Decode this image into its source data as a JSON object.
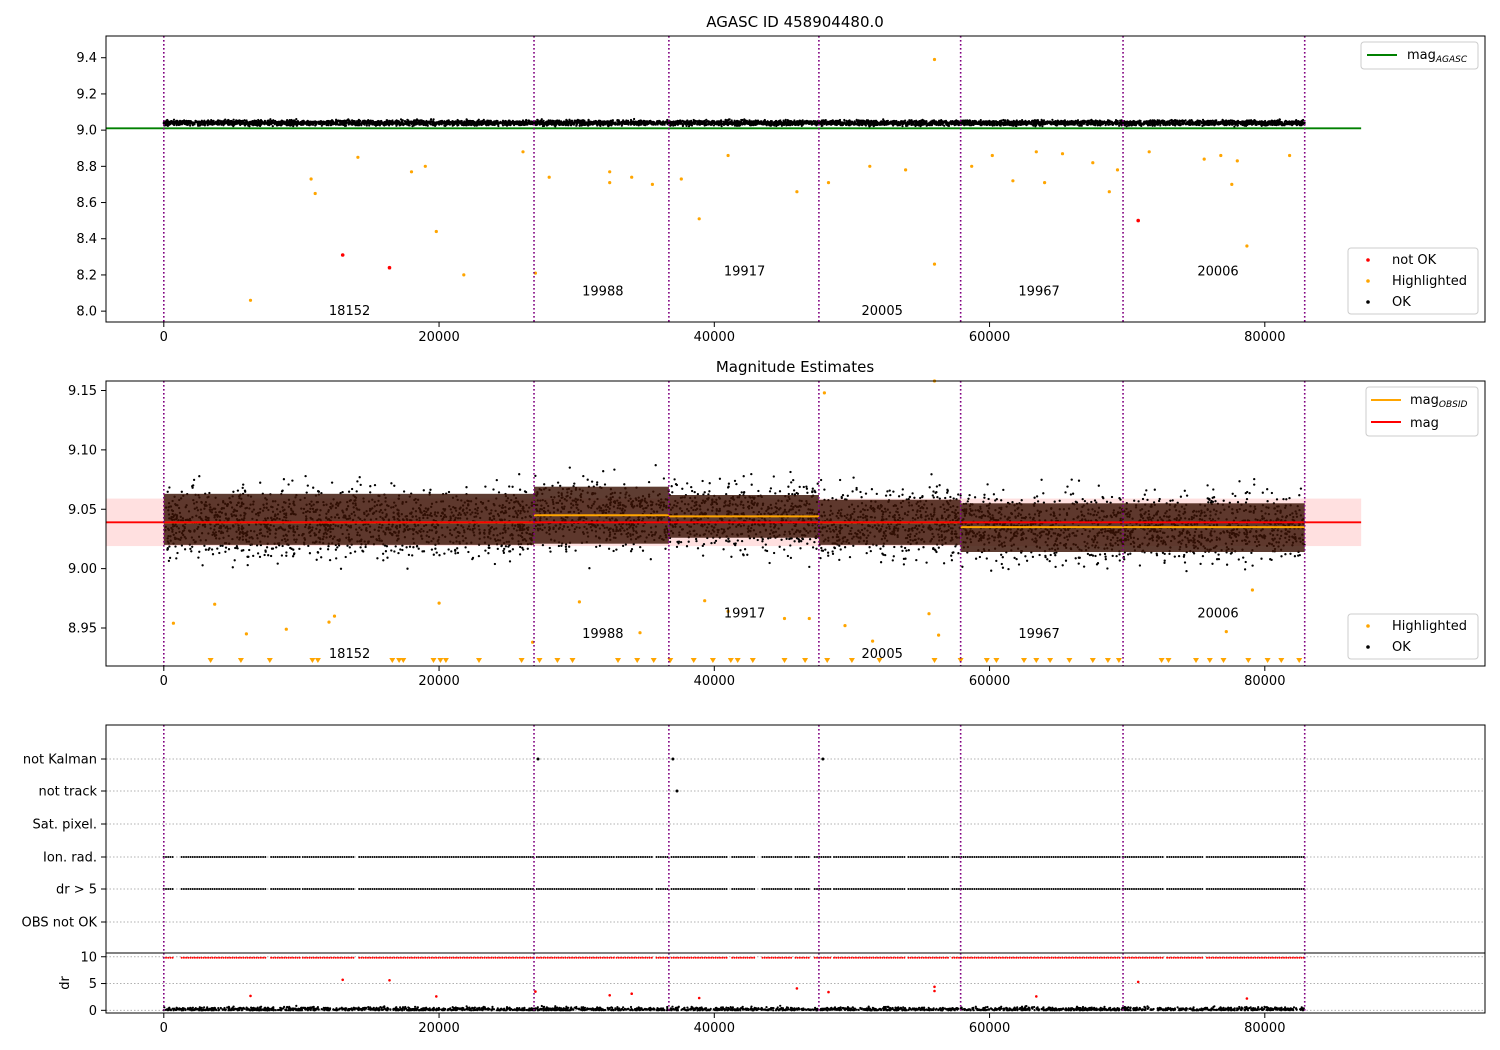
{
  "chart_data": [
    {
      "type": "scatter",
      "title": "AGASC ID 458904480.0",
      "xlim": [
        -4200,
        96000
      ],
      "ylim": [
        7.94,
        9.52
      ],
      "x_ticks": [
        0,
        20000,
        40000,
        60000,
        80000
      ],
      "y_ticks": [
        8.0,
        8.2,
        8.4,
        8.6,
        8.8,
        9.0,
        9.2,
        9.4
      ],
      "grid": false,
      "reference_line": {
        "name": "mag_AGASC",
        "y": 9.01,
        "x": [
          -4200,
          87000
        ],
        "color": "#008000"
      },
      "observation_boundaries": [
        0,
        26900,
        36700,
        47600,
        57900,
        69700,
        82900
      ],
      "observation_labels": [
        {
          "text": "18152",
          "x": 13500,
          "y": 8.005
        },
        {
          "text": "19988",
          "x": 31900,
          "y": 8.115
        },
        {
          "text": "19917",
          "x": 42200,
          "y": 8.225
        },
        {
          "text": "20005",
          "x": 52200,
          "y": 8.005
        },
        {
          "text": "19967",
          "x": 63600,
          "y": 8.115
        },
        {
          "text": "20006",
          "x": 76600,
          "y": 8.225
        }
      ],
      "band": {
        "center": 9.04,
        "half_width": 0.04,
        "x_range": [
          0,
          82900
        ]
      },
      "series": [
        {
          "name": "not OK",
          "color": "#ff0000",
          "points": [
            [
              13000,
              8.31
            ],
            [
              16400,
              8.24
            ],
            [
              70800,
              8.5
            ]
          ]
        },
        {
          "name": "Highlighted",
          "color": "#ffa500",
          "points": [
            [
              6300,
              8.06
            ],
            [
              10700,
              8.73
            ],
            [
              11000,
              8.65
            ],
            [
              14100,
              8.85
            ],
            [
              18000,
              8.77
            ],
            [
              19000,
              8.8
            ],
            [
              19800,
              8.44
            ],
            [
              21800,
              8.2
            ],
            [
              26100,
              8.88
            ],
            [
              27000,
              8.21
            ],
            [
              28000,
              8.74
            ],
            [
              32400,
              8.71
            ],
            [
              32400,
              8.77
            ],
            [
              34000,
              8.74
            ],
            [
              35500,
              8.7
            ],
            [
              37600,
              8.73
            ],
            [
              38900,
              8.51
            ],
            [
              41000,
              8.86
            ],
            [
              46000,
              8.66
            ],
            [
              48300,
              8.71
            ],
            [
              51300,
              8.8
            ],
            [
              53900,
              8.78
            ],
            [
              56000,
              9.39
            ],
            [
              56000,
              8.26
            ],
            [
              58700,
              8.8
            ],
            [
              60200,
              8.86
            ],
            [
              61700,
              8.72
            ],
            [
              63400,
              8.88
            ],
            [
              64000,
              8.71
            ],
            [
              65300,
              8.87
            ],
            [
              67500,
              8.82
            ],
            [
              68700,
              8.66
            ],
            [
              69300,
              8.78
            ],
            [
              71600,
              8.88
            ],
            [
              75600,
              8.84
            ],
            [
              76800,
              8.86
            ],
            [
              77600,
              8.7
            ],
            [
              78000,
              8.83
            ],
            [
              78700,
              8.36
            ],
            [
              81800,
              8.86
            ]
          ]
        },
        {
          "name": "OK",
          "color": "#000000",
          "density_note": "dense band between 8.99 and 9.09 across all observations"
        }
      ],
      "legend": {
        "top_right": [
          "mag_AGASC"
        ],
        "bottom_right": [
          "not OK",
          "Highlighted",
          "OK"
        ]
      }
    },
    {
      "type": "scatter",
      "title": "Magnitude Estimates",
      "xlim": [
        -4200,
        96000
      ],
      "ylim": [
        8.918,
        9.158
      ],
      "x_ticks": [
        0,
        20000,
        40000,
        60000,
        80000
      ],
      "y_ticks": [
        8.95,
        9.0,
        9.05,
        9.1,
        9.15
      ],
      "grid": false,
      "observation_boundaries": [
        0,
        26900,
        36700,
        47600,
        57900,
        69700,
        82900
      ],
      "observation_labels": [
        {
          "text": "18152",
          "x": 13500,
          "y": 8.929
        },
        {
          "text": "19988",
          "x": 31900,
          "y": 8.946
        },
        {
          "text": "19917",
          "x": 42200,
          "y": 8.963
        },
        {
          "text": "20005",
          "x": 52200,
          "y": 8.929
        },
        {
          "text": "19967",
          "x": 63600,
          "y": 8.946
        },
        {
          "text": "20006",
          "x": 76600,
          "y": 8.963
        }
      ],
      "mag_line": {
        "name": "mag",
        "y": 9.039,
        "x": [
          -4200,
          87000
        ],
        "color": "#ff0000",
        "band": [
          9.019,
          9.059
        ]
      },
      "mag_obsid": {
        "name": "mag_OBSID",
        "color": "#ffa500",
        "segments": [
          {
            "x": [
              0,
              26900
            ],
            "y": 9.039,
            "band": [
              9.02,
              9.063
            ]
          },
          {
            "x": [
              26900,
              36700
            ],
            "y": 9.045,
            "band": [
              9.021,
              9.069
            ]
          },
          {
            "x": [
              36700,
              47600
            ],
            "y": 9.044,
            "band": [
              9.026,
              9.062
            ]
          },
          {
            "x": [
              47600,
              57900
            ],
            "y": 9.039,
            "band": [
              9.02,
              9.058
            ]
          },
          {
            "x": [
              57900,
              69700
            ],
            "y": 9.035,
            "band": [
              9.014,
              9.055
            ]
          },
          {
            "x": [
              69700,
              82900
            ],
            "y": 9.035,
            "band": [
              9.014,
              9.055
            ]
          }
        ]
      },
      "clipped_low_markers_x": [
        3400,
        5600,
        7700,
        10800,
        11200,
        16600,
        17100,
        17400,
        19600,
        20100,
        20500,
        22900,
        26000,
        27300,
        28600,
        29700,
        33000,
        34400,
        35600,
        36800,
        38500,
        39900,
        41200,
        41700,
        42800,
        45100,
        46600,
        48200,
        50000,
        52000,
        56000,
        57900,
        59800,
        60500,
        62500,
        63400,
        64400,
        65800,
        67500,
        68600,
        69400,
        72500,
        73000,
        75000,
        76000,
        77000,
        78800,
        80200,
        81200,
        82500
      ],
      "highlighted_outliers": [
        [
          700,
          8.954
        ],
        [
          3700,
          8.97
        ],
        [
          6000,
          8.945
        ],
        [
          8900,
          8.949
        ],
        [
          12000,
          8.955
        ],
        [
          12400,
          8.96
        ],
        [
          20000,
          8.971
        ],
        [
          26800,
          8.938
        ],
        [
          30200,
          8.972
        ],
        [
          34600,
          8.946
        ],
        [
          39300,
          8.973
        ],
        [
          41000,
          8.964
        ],
        [
          45100,
          8.958
        ],
        [
          46900,
          8.958
        ],
        [
          48000,
          9.148
        ],
        [
          49500,
          8.952
        ],
        [
          51500,
          8.939
        ],
        [
          55600,
          8.962
        ],
        [
          56300,
          8.944
        ],
        [
          56000,
          9.158
        ],
        [
          77200,
          8.947
        ],
        [
          79100,
          8.982
        ]
      ],
      "series": [
        {
          "name": "Highlighted",
          "color": "#ffa500",
          "density_note": "points above ~9.09 and below ~8.99"
        },
        {
          "name": "OK",
          "color": "#000000",
          "density_note": "dense band between ~8.98 and ~9.10"
        }
      ],
      "legend": {
        "top_right": [
          "mag_OBSID",
          "mag"
        ],
        "bottom_right": [
          "Highlighted",
          "OK"
        ]
      }
    },
    {
      "type": "scatter",
      "title": "",
      "xlim": [
        -4200,
        96000
      ],
      "x_ticks": [
        0,
        20000,
        40000,
        60000,
        80000
      ],
      "categories": [
        "not Kalman",
        "not track",
        "Sat. pixel.",
        "Ion. rad.",
        "dr > 5",
        "OBS not OK"
      ],
      "grid": "dotted horizontal per category",
      "observation_boundaries": [
        0,
        26900,
        36700,
        47600,
        57900,
        69700,
        82900
      ],
      "flag_rows": [
        {
          "category": "not Kalman",
          "points_x": [
            26900,
            36700,
            47600
          ]
        },
        {
          "category": "not track",
          "points_x": [
            37000
          ]
        },
        {
          "category": "Sat. pixel.",
          "points_x": []
        },
        {
          "category": "Ion. rad.",
          "ranges": [
            [
              0,
              700
            ],
            [
              1300,
              7500
            ],
            [
              7800,
              9900
            ],
            [
              10100,
              13900
            ],
            [
              14200,
              26900
            ],
            [
              27100,
              32800
            ],
            [
              32900,
              35600
            ],
            [
              35800,
              36700
            ],
            [
              36900,
              41000
            ],
            [
              41300,
              43000
            ],
            [
              43500,
              45600
            ],
            [
              45900,
              47000
            ],
            [
              47300,
              48500
            ],
            [
              48700,
              53900
            ],
            [
              54100,
              57000
            ],
            [
              57300,
              69500
            ],
            [
              69700,
              72600
            ],
            [
              72900,
              75500
            ],
            [
              75800,
              82900
            ]
          ]
        },
        {
          "category": "dr > 5",
          "ranges": [
            [
              0,
              700
            ],
            [
              1300,
              7500
            ],
            [
              7800,
              9900
            ],
            [
              10100,
              13900
            ],
            [
              14200,
              26900
            ],
            [
              27100,
              32800
            ],
            [
              32900,
              35600
            ],
            [
              35800,
              36700
            ],
            [
              36900,
              41000
            ],
            [
              41300,
              43000
            ],
            [
              43500,
              45600
            ],
            [
              45900,
              47000
            ],
            [
              47300,
              48500
            ],
            [
              48700,
              53900
            ],
            [
              54100,
              57000
            ],
            [
              57300,
              69500
            ],
            [
              69700,
              72600
            ],
            [
              72900,
              75500
            ],
            [
              75800,
              82900
            ]
          ]
        },
        {
          "category": "OBS not OK",
          "points_x": []
        }
      ]
    },
    {
      "type": "scatter",
      "title": "",
      "ylabel": "dr",
      "xlim": [
        -4200,
        96000
      ],
      "ylim": [
        -0.5,
        10.7
      ],
      "x_ticks": [
        0,
        20000,
        40000,
        60000,
        80000
      ],
      "y_ticks": [
        0,
        5,
        10
      ],
      "grid": "dotted horizontal",
      "observation_boundaries": [
        0,
        26900,
        36700,
        47600,
        57900,
        69700,
        82900
      ],
      "clipped_high_y": 9.8,
      "dr_outliers": [
        [
          6300,
          2.7
        ],
        [
          13000,
          5.7
        ],
        [
          16400,
          5.6
        ],
        [
          19800,
          2.6
        ],
        [
          27000,
          3.5
        ],
        [
          32400,
          2.8
        ],
        [
          34000,
          3.1
        ],
        [
          38900,
          2.3
        ],
        [
          46000,
          4.1
        ],
        [
          48300,
          3.4
        ],
        [
          56000,
          4.4
        ],
        [
          56000,
          3.6
        ],
        [
          63400,
          2.6
        ],
        [
          70800,
          5.3
        ],
        [
          78700,
          2.2
        ]
      ],
      "series": [
        {
          "name": "OK",
          "color": "#000000",
          "density_note": "dense between 0 and 1.5"
        },
        {
          "name": "not OK",
          "color": "#ff0000",
          "density_note": "row at the top of the axis (clipped ≥10)"
        }
      ]
    }
  ],
  "legend_labels": {
    "mag_agasc_base": "mag",
    "mag_agasc_sub": "AGASC",
    "not_ok": "not OK",
    "highlighted": "Highlighted",
    "ok": "OK",
    "mag_obsid_base": "mag",
    "mag_obsid_sub": "OBSID",
    "mag": "mag"
  },
  "colors": {
    "purple_boundary": "#800080",
    "orange": "#ffa500",
    "red": "#ff0000",
    "green": "#008000",
    "black": "#000000",
    "band_fill": "#ffcccc",
    "obsid_band": "#3a1205"
  }
}
